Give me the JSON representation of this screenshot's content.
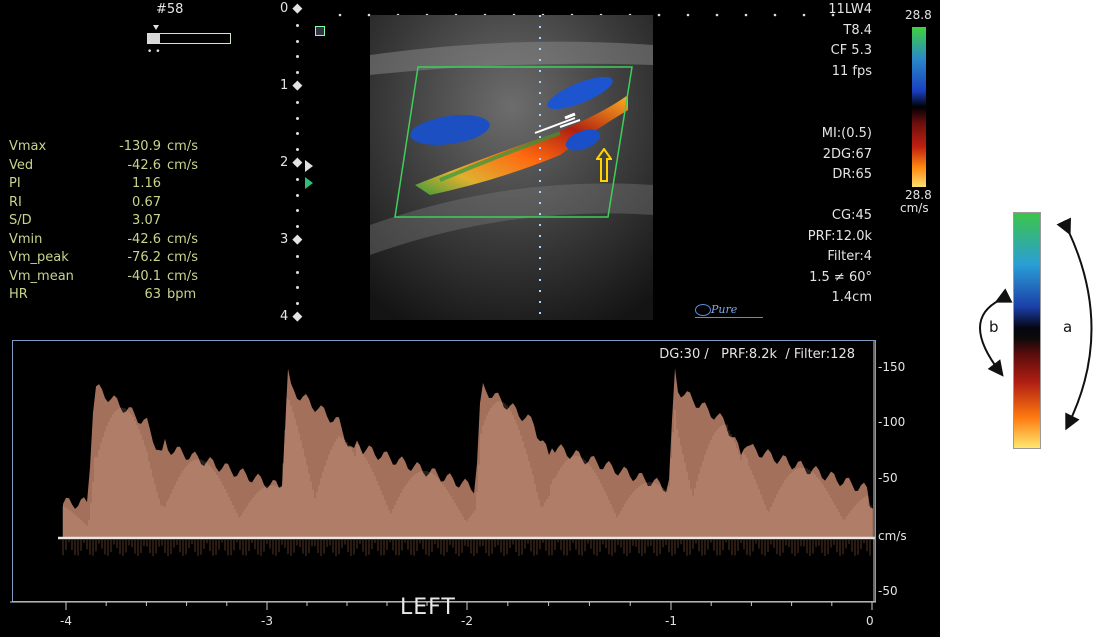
{
  "frame": {
    "number": "#58"
  },
  "measurements": [
    {
      "label": "Vmax",
      "value": "-130.9",
      "unit": "cm/s"
    },
    {
      "label": "Ved",
      "value": "-42.6",
      "unit": "cm/s"
    },
    {
      "label": "PI",
      "value": "1.16",
      "unit": ""
    },
    {
      "label": "RI",
      "value": "0.67",
      "unit": ""
    },
    {
      "label": "S/D",
      "value": "3.07",
      "unit": ""
    },
    {
      "label": "Vmin",
      "value": "-42.6",
      "unit": "cm/s"
    },
    {
      "label": "Vm_peak",
      "value": "-76.2",
      "unit": "cm/s"
    },
    {
      "label": "Vm_mean",
      "value": "-40.1",
      "unit": "cm/s"
    },
    {
      "label": "HR",
      "value": "63",
      "unit": "bpm"
    }
  ],
  "depth_scale": [
    "0",
    "1",
    "2",
    "3",
    "4"
  ],
  "probe_params": [
    "11LW4",
    "T8.4",
    "CF 5.3",
    "11 fps"
  ],
  "image_params": [
    "MI:(0.5)",
    "2DG:67",
    "DR:65",
    "",
    "CG:45",
    "PRF:12.0k",
    "Filter:4",
    "1.5 ≠ 60°",
    "1.4cm"
  ],
  "color_scale": {
    "top": "28.8",
    "bottom": "28.8",
    "unit": "cm/s"
  },
  "logo_text": "Pure",
  "doppler": {
    "header": "DG:30 /   PRF:8.2k  / Filter:128",
    "y_ticks": [
      "-150",
      "-100",
      "-50",
      "cm/s",
      "-50"
    ],
    "x_ticks": [
      "-4",
      "-3",
      "-2",
      "-1",
      "0"
    ],
    "side_label": "LEFT"
  },
  "legend": {
    "b": "b",
    "a": "a"
  },
  "colors": {
    "measure_text": "#c8d48c",
    "border": "#7f9dc3",
    "spectrum": "#d9967a",
    "roi_box": "#3ecf5a"
  }
}
